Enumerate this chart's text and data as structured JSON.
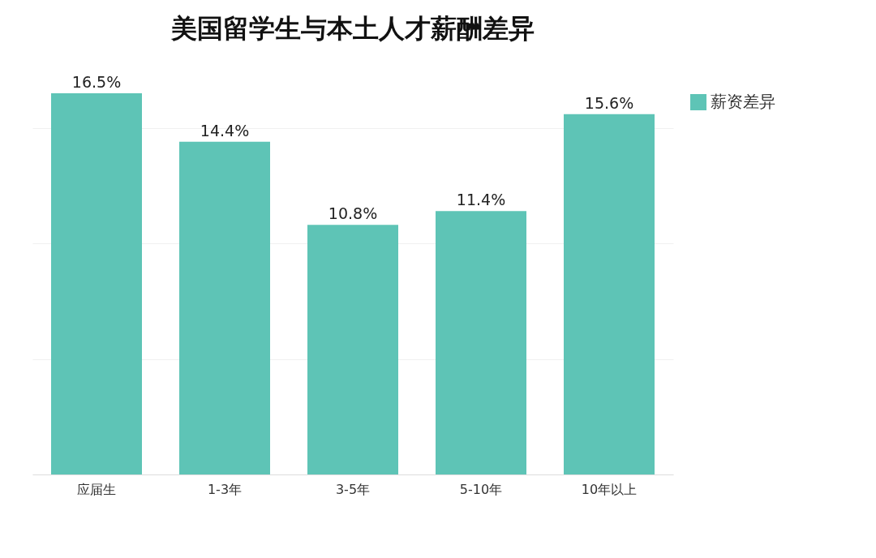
{
  "chart_data": {
    "type": "bar",
    "title": "美国留学生与本土人才薪酬差异",
    "categories": [
      "应届生",
      "1-3年",
      "3-5年",
      "5-10年",
      "10年以上"
    ],
    "series": [
      {
        "name": "薪资差异",
        "color": "#5ec4b6",
        "values": [
          16.5,
          14.4,
          10.8,
          11.4,
          15.6
        ],
        "value_labels": [
          "16.5%",
          "14.4%",
          "10.8%",
          "11.4%",
          "15.6%"
        ]
      }
    ],
    "grid": "y",
    "legend": "top right",
    "tick_labels": "x"
  }
}
